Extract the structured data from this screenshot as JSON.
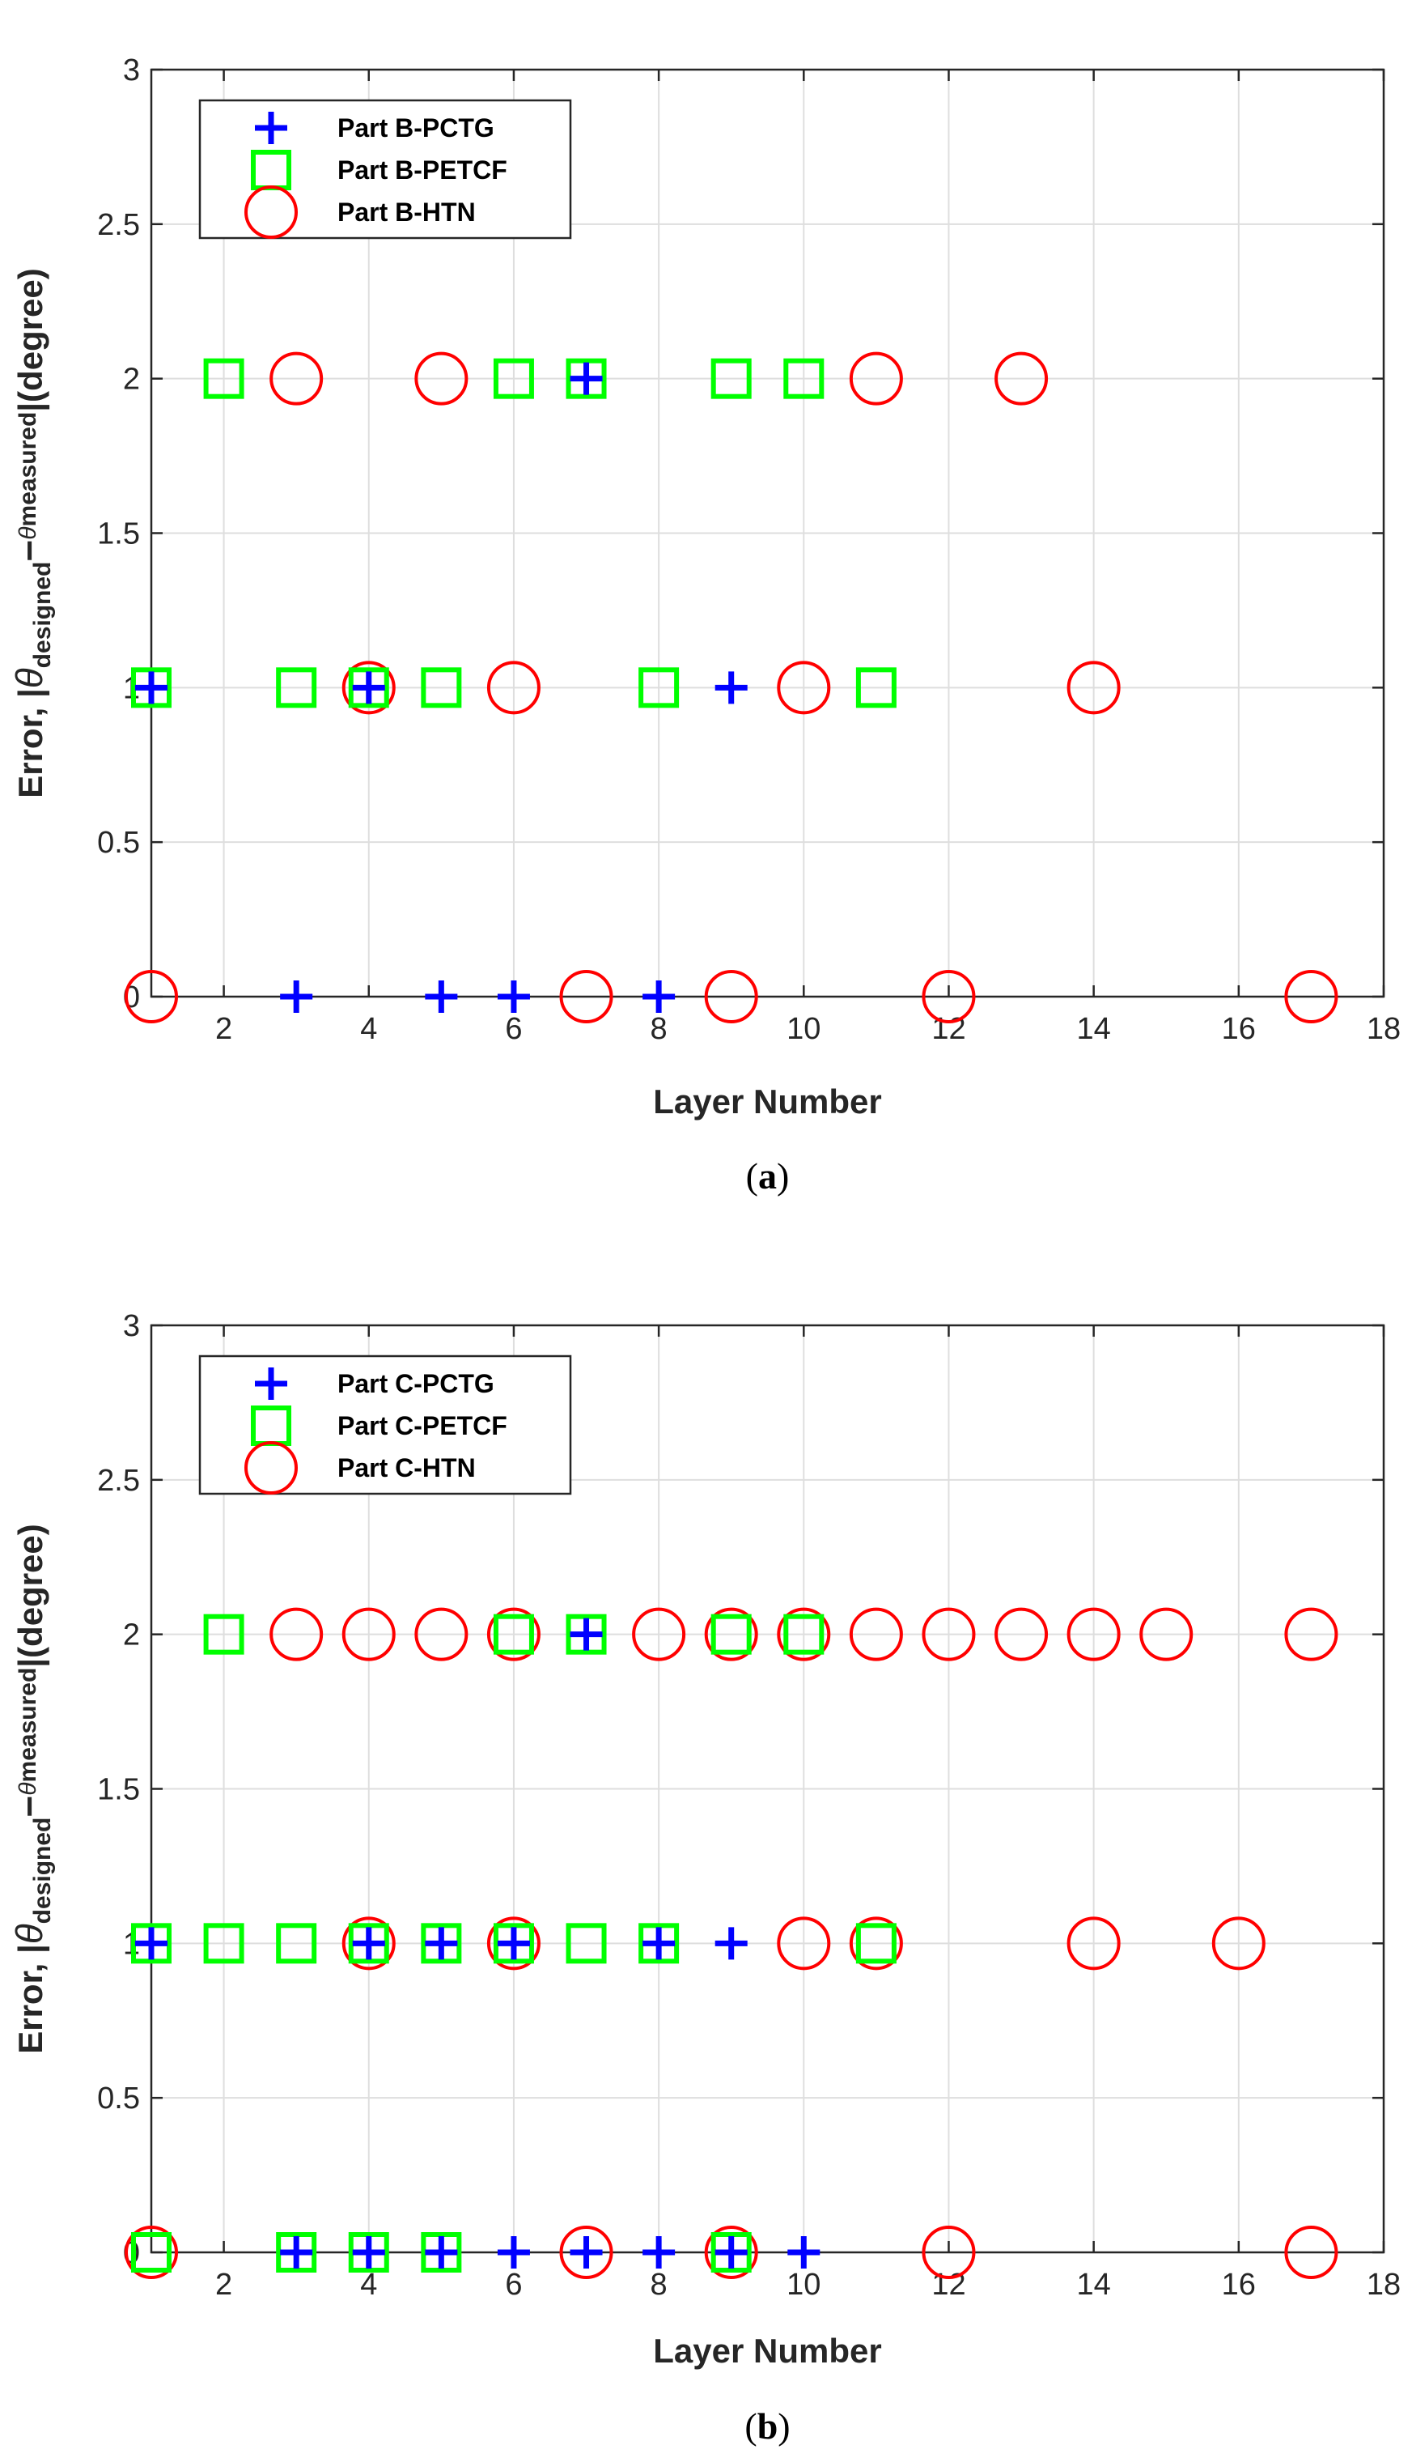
{
  "colors": {
    "pctg": "#0000ff",
    "petcf": "#00ff00",
    "htn": "#ff0000"
  },
  "chart_data": [
    {
      "id": "a",
      "type": "scatter",
      "caption_letter": "a",
      "xlabel": "Layer Number",
      "ylabel_parts": {
        "prefix": "Error, |",
        "theta": "θ",
        "sub1": "designed",
        "minus": "−",
        "sub2": "measured",
        "suffix": "|(degree)"
      },
      "xlim": [
        1,
        18
      ],
      "ylim": [
        0,
        3
      ],
      "xticks": [
        2,
        4,
        6,
        8,
        10,
        12,
        14,
        16,
        18
      ],
      "yticks": [
        0,
        0.5,
        1,
        1.5,
        2,
        2.5,
        3
      ],
      "xtick_labels": [
        "2",
        "4",
        "6",
        "8",
        "10",
        "12",
        "14",
        "16",
        "18"
      ],
      "ytick_labels": [
        "0",
        "0.5",
        "1",
        "1.5",
        "2",
        "2.5",
        "3"
      ],
      "grid": true,
      "legend_position": "top-left",
      "series": [
        {
          "name": "Part B-PCTG",
          "marker": "plus",
          "color": "#0000ff",
          "points": [
            [
              1,
              1
            ],
            [
              3,
              0
            ],
            [
              4,
              1
            ],
            [
              5,
              0
            ],
            [
              6,
              0
            ],
            [
              7,
              2
            ],
            [
              8,
              0
            ],
            [
              9,
              1
            ]
          ]
        },
        {
          "name": "Part B-PETCF",
          "marker": "square",
          "color": "#00ff00",
          "points": [
            [
              1,
              1
            ],
            [
              2,
              2
            ],
            [
              3,
              1
            ],
            [
              4,
              1
            ],
            [
              5,
              1
            ],
            [
              6,
              2
            ],
            [
              7,
              2
            ],
            [
              8,
              1
            ],
            [
              9,
              2
            ],
            [
              10,
              2
            ],
            [
              11,
              1
            ]
          ]
        },
        {
          "name": "Part B-HTN",
          "marker": "circle",
          "color": "#ff0000",
          "points": [
            [
              1,
              0
            ],
            [
              3,
              2
            ],
            [
              4,
              1
            ],
            [
              5,
              2
            ],
            [
              6,
              1
            ],
            [
              7,
              0
            ],
            [
              9,
              0
            ],
            [
              10,
              1
            ],
            [
              11,
              2
            ],
            [
              12,
              0
            ],
            [
              13,
              2
            ],
            [
              14,
              1
            ],
            [
              17,
              0
            ]
          ]
        }
      ]
    },
    {
      "id": "b",
      "type": "scatter",
      "caption_letter": "b",
      "xlabel": "Layer Number",
      "ylabel_parts": {
        "prefix": "Error, |",
        "theta": "θ",
        "sub1": "designed",
        "minus": "−",
        "sub2": "measured",
        "suffix": "|(degree)"
      },
      "xlim": [
        1,
        18
      ],
      "ylim": [
        0,
        3
      ],
      "xticks": [
        2,
        4,
        6,
        8,
        10,
        12,
        14,
        16,
        18
      ],
      "yticks": [
        0,
        0.5,
        1,
        1.5,
        2,
        2.5,
        3
      ],
      "xtick_labels": [
        "2",
        "4",
        "6",
        "8",
        "10",
        "12",
        "14",
        "16",
        "18"
      ],
      "ytick_labels": [
        "0",
        "0.5",
        "1",
        "1.5",
        "2",
        "2.5",
        "3"
      ],
      "grid": true,
      "legend_position": "top-left",
      "series": [
        {
          "name": "Part C-PCTG",
          "marker": "plus",
          "color": "#0000ff",
          "points": [
            [
              1,
              1
            ],
            [
              3,
              0
            ],
            [
              4,
              0
            ],
            [
              4,
              1
            ],
            [
              5,
              0
            ],
            [
              5,
              1
            ],
            [
              6,
              0
            ],
            [
              6,
              1
            ],
            [
              7,
              0
            ],
            [
              7,
              2
            ],
            [
              8,
              0
            ],
            [
              8,
              1
            ],
            [
              9,
              0
            ],
            [
              9,
              1
            ],
            [
              10,
              0
            ]
          ]
        },
        {
          "name": "Part C-PETCF",
          "marker": "square",
          "color": "#00ff00",
          "points": [
            [
              1,
              0
            ],
            [
              1,
              1
            ],
            [
              2,
              1
            ],
            [
              2,
              2
            ],
            [
              3,
              0
            ],
            [
              3,
              1
            ],
            [
              4,
              0
            ],
            [
              4,
              1
            ],
            [
              5,
              0
            ],
            [
              5,
              1
            ],
            [
              6,
              1
            ],
            [
              6,
              2
            ],
            [
              7,
              1
            ],
            [
              7,
              2
            ],
            [
              8,
              1
            ],
            [
              9,
              0
            ],
            [
              9,
              2
            ],
            [
              10,
              2
            ],
            [
              11,
              1
            ]
          ]
        },
        {
          "name": "Part C-HTN",
          "marker": "circle",
          "color": "#ff0000",
          "points": [
            [
              1,
              0
            ],
            [
              3,
              2
            ],
            [
              4,
              1
            ],
            [
              4,
              2
            ],
            [
              5,
              2
            ],
            [
              6,
              1
            ],
            [
              6,
              2
            ],
            [
              7,
              0
            ],
            [
              8,
              2
            ],
            [
              9,
              0
            ],
            [
              9,
              2
            ],
            [
              10,
              1
            ],
            [
              10,
              2
            ],
            [
              11,
              1
            ],
            [
              11,
              2
            ],
            [
              12,
              0
            ],
            [
              12,
              2
            ],
            [
              13,
              2
            ],
            [
              14,
              1
            ],
            [
              14,
              2
            ],
            [
              15,
              2
            ],
            [
              16,
              1
            ],
            [
              17,
              0
            ],
            [
              17,
              2
            ]
          ]
        }
      ]
    }
  ]
}
